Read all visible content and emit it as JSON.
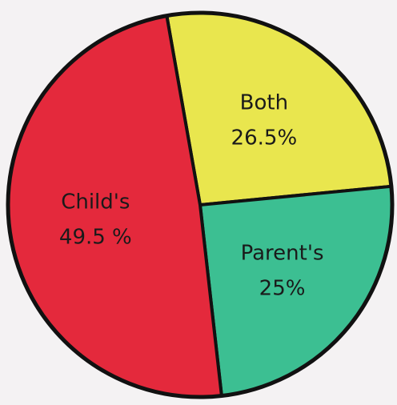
{
  "chart_data": {
    "type": "pie",
    "categories": [
      "Both",
      "Parent's",
      "Child's"
    ],
    "values": [
      26.5,
      25,
      49.5
    ],
    "value_labels": [
      "26.5%",
      "25%",
      "49.5 %"
    ],
    "colors": [
      "#e9e64e",
      "#3cbf92",
      "#e4293c"
    ]
  }
}
